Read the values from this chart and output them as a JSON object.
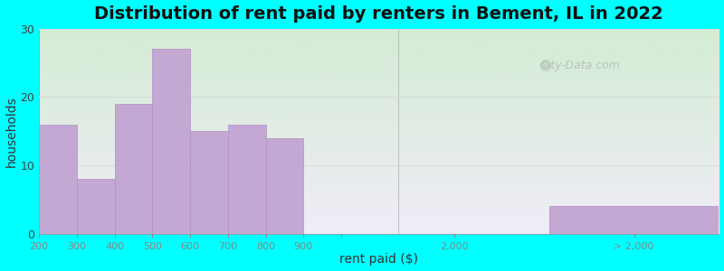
{
  "title": "Distribution of rent paid by renters in Bement, IL in 2022",
  "xlabel": "rent paid ($)",
  "ylabel": "households",
  "background_outer": "#00FFFF",
  "bar_color": "#c4a8d4",
  "bar_edge_color": "#b090c0",
  "yticks": [
    0,
    10,
    20,
    30
  ],
  "ylim": [
    0,
    30
  ],
  "bar_vals": [
    16,
    8,
    19,
    27,
    15,
    16,
    14,
    0,
    4
  ],
  "bar_positions": [
    0,
    1,
    2,
    3,
    4,
    5,
    6,
    7,
    13.5
  ],
  "bar_widths": [
    1,
    1,
    1,
    1,
    1,
    1,
    1,
    1,
    4.5
  ],
  "xtick_positions": [
    0,
    1,
    2,
    3,
    4,
    5,
    6,
    7,
    8,
    11.0,
    15.75
  ],
  "xtick_labels": [
    "200",
    "300",
    "400",
    "500",
    "600",
    "700",
    "800",
    "900",
    "",
    "2,000",
    "> 2,000"
  ],
  "xlim": [
    0,
    18
  ],
  "separator_x": 9.5,
  "watermark": "City-Data.com",
  "grid_color": "#d8d8d0",
  "title_fontsize": 14,
  "axis_label_fontsize": 10
}
